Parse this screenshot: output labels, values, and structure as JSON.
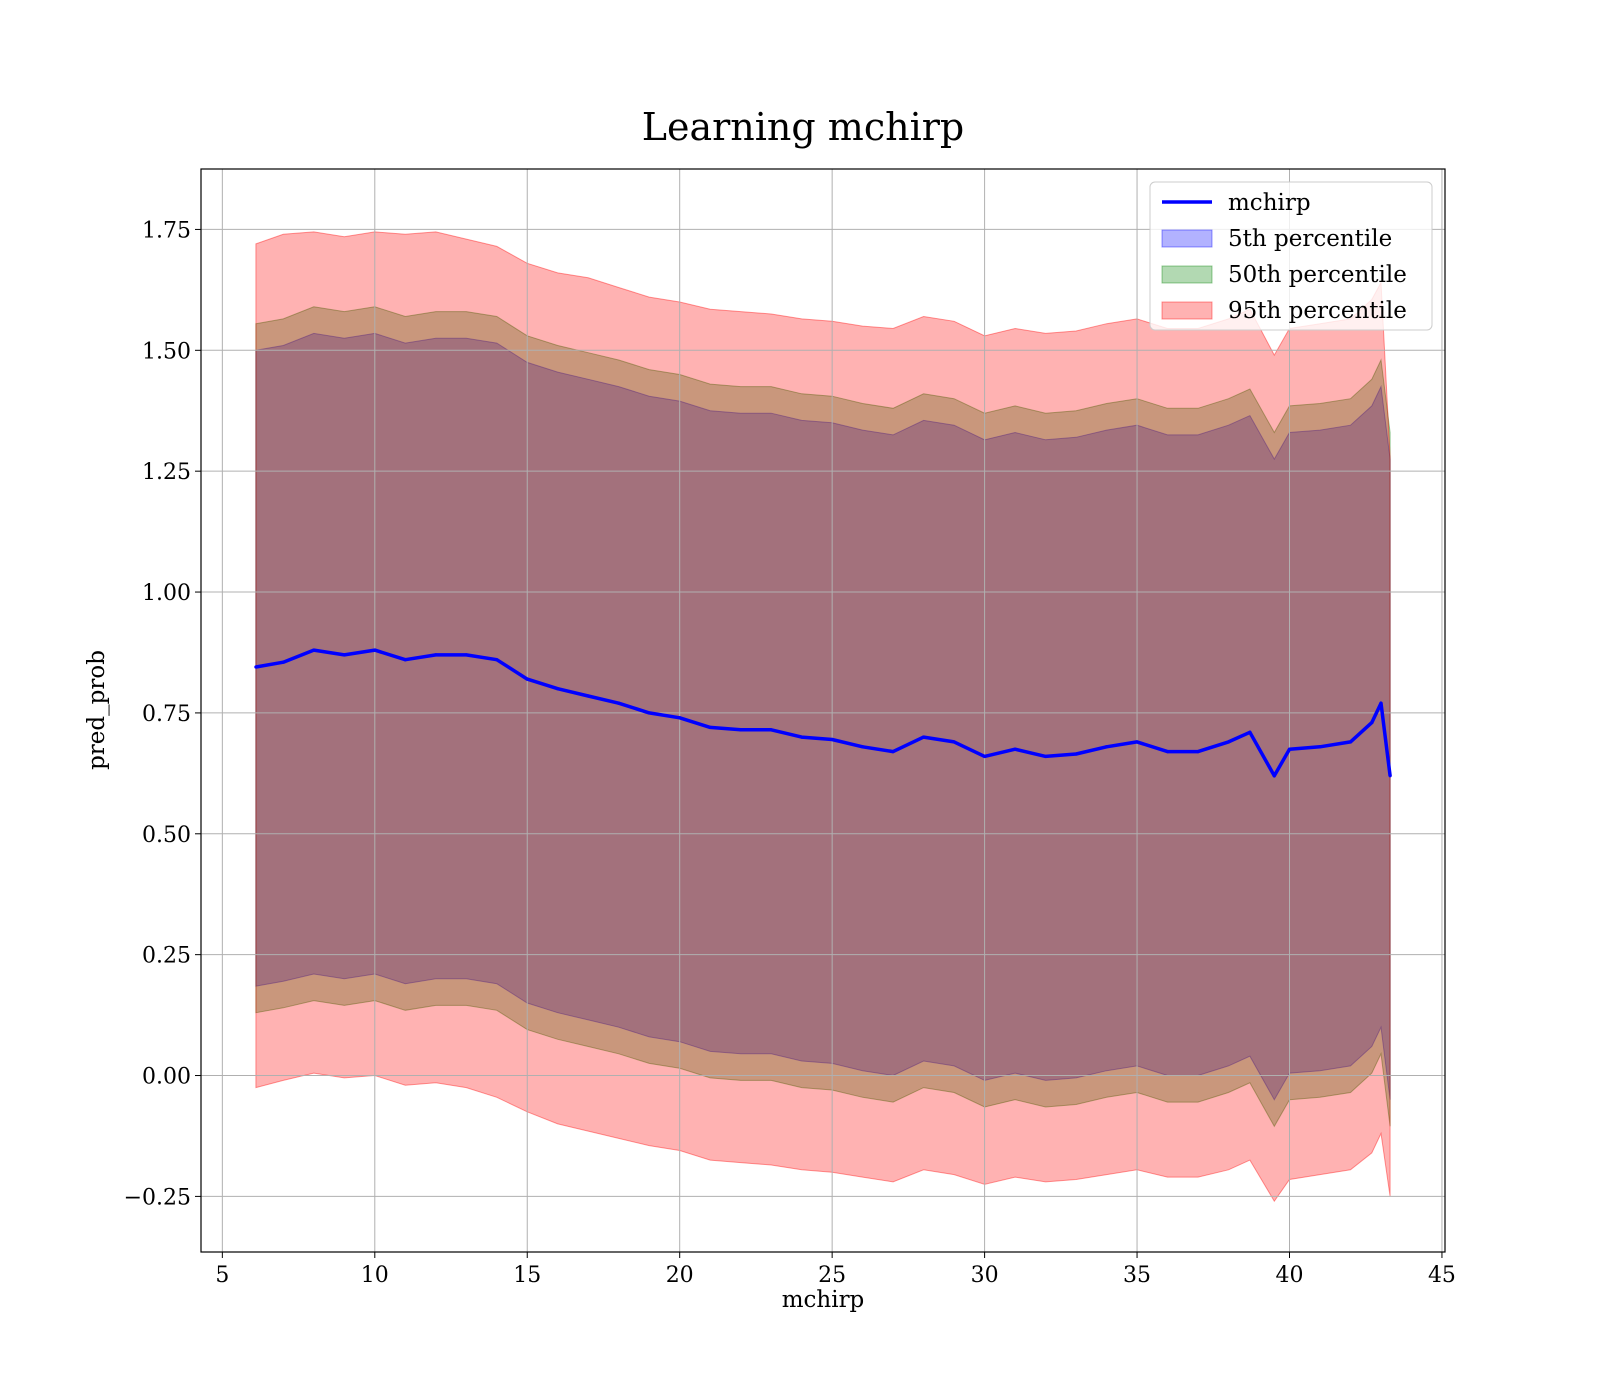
{
  "chart_data": {
    "type": "line",
    "title": "Learning mchirp",
    "xlabel": "mchirp",
    "ylabel": "pred_prob",
    "xlim": [
      4.3,
      45.1
    ],
    "ylim": [
      -0.365,
      1.875
    ],
    "xticks": [
      5,
      10,
      15,
      20,
      25,
      30,
      35,
      40,
      45
    ],
    "xtick_labels": [
      "5",
      "10",
      "15",
      "20",
      "25",
      "30",
      "35",
      "40",
      "45"
    ],
    "yticks": [
      -0.25,
      0,
      0.25,
      0.5,
      0.75,
      1.0,
      1.25,
      1.5,
      1.75
    ],
    "ytick_labels": [
      "−0.25",
      "0.00",
      "0.25",
      "0.50",
      "0.75",
      "1.00",
      "1.25",
      "1.50",
      "1.75"
    ],
    "grid": true,
    "legend_position": "top-right",
    "legend": [
      "mchirp",
      "5th percentile",
      "50th percentile",
      "95th percentile"
    ],
    "x": [
      6.1,
      7.0,
      8.0,
      9.0,
      10.0,
      11.0,
      12.0,
      13.0,
      14.0,
      15.0,
      16.0,
      17.0,
      18.0,
      19.0,
      20.0,
      21.0,
      22.0,
      23.0,
      24.0,
      25.0,
      26.0,
      27.0,
      28.0,
      29.0,
      30.0,
      31.0,
      32.0,
      33.0,
      34.0,
      35.0,
      36.0,
      37.0,
      38.0,
      38.7,
      39.5,
      40.0,
      41.0,
      42.0,
      42.7,
      43.0,
      43.3
    ],
    "series": [
      {
        "name": "mchirp",
        "type": "line",
        "color": "#0000ff",
        "values": [
          0.845,
          0.855,
          0.88,
          0.87,
          0.88,
          0.86,
          0.87,
          0.87,
          0.86,
          0.82,
          0.8,
          0.785,
          0.77,
          0.75,
          0.74,
          0.72,
          0.715,
          0.715,
          0.7,
          0.695,
          0.68,
          0.67,
          0.7,
          0.69,
          0.66,
          0.675,
          0.66,
          0.665,
          0.68,
          0.69,
          0.67,
          0.67,
          0.69,
          0.71,
          0.62,
          0.675,
          0.68,
          0.69,
          0.73,
          0.77,
          0.62
        ]
      },
      {
        "name": "5th percentile",
        "type": "band",
        "color": "#0000ff",
        "lower": [
          0.185,
          0.195,
          0.21,
          0.2,
          0.21,
          0.19,
          0.2,
          0.2,
          0.19,
          0.15,
          0.13,
          0.115,
          0.1,
          0.08,
          0.07,
          0.05,
          0.045,
          0.045,
          0.03,
          0.025,
          0.01,
          0.0,
          0.03,
          0.02,
          -0.01,
          0.005,
          -0.01,
          -0.005,
          0.01,
          0.02,
          0.0,
          0.0,
          0.02,
          0.04,
          -0.05,
          0.005,
          0.01,
          0.02,
          0.06,
          0.1,
          -0.05
        ],
        "upper": [
          1.5,
          1.51,
          1.535,
          1.525,
          1.535,
          1.515,
          1.525,
          1.525,
          1.515,
          1.475,
          1.455,
          1.44,
          1.425,
          1.405,
          1.395,
          1.375,
          1.37,
          1.37,
          1.355,
          1.35,
          1.335,
          1.325,
          1.355,
          1.345,
          1.315,
          1.33,
          1.315,
          1.32,
          1.335,
          1.345,
          1.325,
          1.325,
          1.345,
          1.365,
          1.275,
          1.33,
          1.335,
          1.345,
          1.385,
          1.425,
          1.275
        ]
      },
      {
        "name": "50th percentile",
        "type": "band",
        "color": "#008000",
        "lower": [
          0.13,
          0.14,
          0.155,
          0.145,
          0.155,
          0.135,
          0.145,
          0.145,
          0.135,
          0.095,
          0.075,
          0.06,
          0.045,
          0.025,
          0.015,
          -0.005,
          -0.01,
          -0.01,
          -0.025,
          -0.03,
          -0.045,
          -0.055,
          -0.025,
          -0.035,
          -0.065,
          -0.05,
          -0.065,
          -0.06,
          -0.045,
          -0.035,
          -0.055,
          -0.055,
          -0.035,
          -0.015,
          -0.105,
          -0.05,
          -0.045,
          -0.035,
          0.005,
          0.045,
          -0.105
        ],
        "upper": [
          1.555,
          1.565,
          1.59,
          1.58,
          1.59,
          1.57,
          1.58,
          1.58,
          1.57,
          1.53,
          1.51,
          1.495,
          1.48,
          1.46,
          1.45,
          1.43,
          1.425,
          1.425,
          1.41,
          1.405,
          1.39,
          1.38,
          1.41,
          1.4,
          1.37,
          1.385,
          1.37,
          1.375,
          1.39,
          1.4,
          1.38,
          1.38,
          1.4,
          1.42,
          1.33,
          1.385,
          1.39,
          1.4,
          1.44,
          1.48,
          1.33
        ]
      },
      {
        "name": "95th percentile",
        "type": "band",
        "color": "#ff0000",
        "lower": [
          -0.025,
          -0.01,
          0.005,
          -0.005,
          0.0,
          -0.02,
          -0.015,
          -0.025,
          -0.045,
          -0.075,
          -0.1,
          -0.115,
          -0.13,
          -0.145,
          -0.155,
          -0.175,
          -0.18,
          -0.185,
          -0.195,
          -0.2,
          -0.21,
          -0.22,
          -0.195,
          -0.205,
          -0.225,
          -0.21,
          -0.22,
          -0.215,
          -0.205,
          -0.195,
          -0.21,
          -0.21,
          -0.195,
          -0.175,
          -0.26,
          -0.215,
          -0.205,
          -0.195,
          -0.16,
          -0.12,
          -0.25
        ],
        "upper": [
          1.72,
          1.74,
          1.745,
          1.735,
          1.745,
          1.74,
          1.745,
          1.73,
          1.715,
          1.68,
          1.66,
          1.65,
          1.63,
          1.61,
          1.6,
          1.585,
          1.58,
          1.575,
          1.565,
          1.56,
          1.55,
          1.545,
          1.57,
          1.56,
          1.53,
          1.545,
          1.535,
          1.54,
          1.555,
          1.565,
          1.545,
          1.545,
          1.565,
          1.585,
          1.49,
          1.545,
          1.555,
          1.565,
          1.605,
          1.64,
          1.28
        ]
      }
    ]
  }
}
